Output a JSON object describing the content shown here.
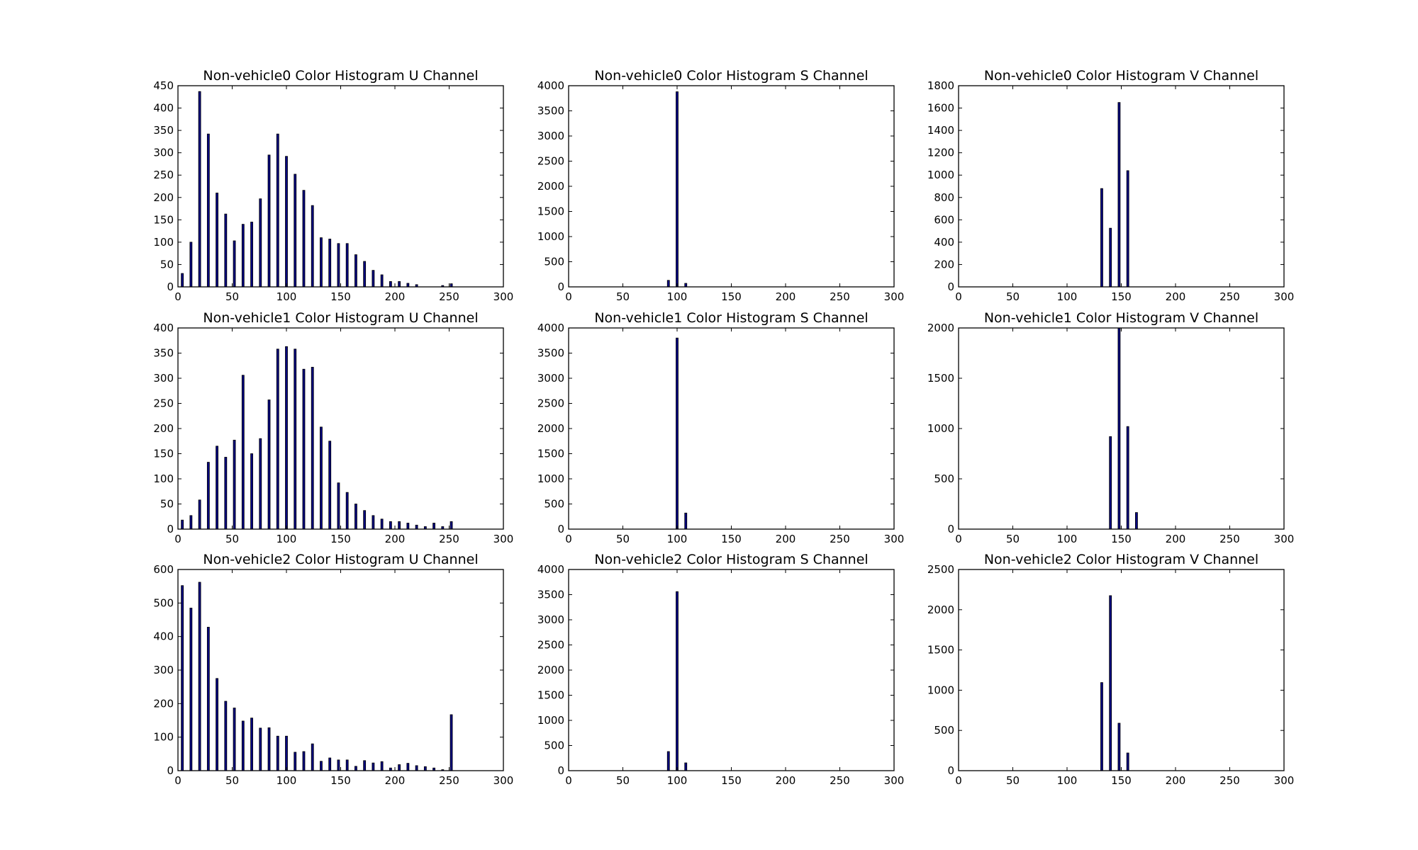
{
  "chart_data": [
    {
      "type": "bar",
      "title": "Non-vehicle0 Color Histogram U Channel",
      "xlim": [
        0,
        300
      ],
      "ylim": [
        0,
        450
      ],
      "xticks": [
        0,
        50,
        100,
        150,
        200,
        250,
        300
      ],
      "yticks": [
        0,
        50,
        100,
        150,
        200,
        250,
        300,
        350,
        400,
        450
      ],
      "x": [
        4,
        12,
        20,
        28,
        36,
        44,
        52,
        60,
        68,
        76,
        84,
        92,
        100,
        108,
        116,
        124,
        132,
        140,
        148,
        156,
        164,
        172,
        180,
        188,
        196,
        204,
        212,
        220,
        244,
        252
      ],
      "values": [
        30,
        100,
        437,
        342,
        210,
        163,
        103,
        140,
        145,
        197,
        295,
        342,
        292,
        252,
        216,
        182,
        110,
        107,
        97,
        97,
        72,
        57,
        37,
        27,
        12,
        12,
        8,
        5,
        3,
        7
      ]
    },
    {
      "type": "bar",
      "title": "Non-vehicle0 Color Histogram S Channel",
      "xlim": [
        0,
        300
      ],
      "ylim": [
        0,
        4000
      ],
      "xticks": [
        0,
        50,
        100,
        150,
        200,
        250,
        300
      ],
      "yticks": [
        0,
        500,
        1000,
        1500,
        2000,
        2500,
        3000,
        3500,
        4000
      ],
      "x": [
        92,
        100,
        108
      ],
      "values": [
        130,
        3880,
        70
      ]
    },
    {
      "type": "bar",
      "title": "Non-vehicle0 Color Histogram V Channel",
      "xlim": [
        0,
        300
      ],
      "ylim": [
        0,
        1800
      ],
      "xticks": [
        0,
        50,
        100,
        150,
        200,
        250,
        300
      ],
      "yticks": [
        0,
        200,
        400,
        600,
        800,
        1000,
        1200,
        1400,
        1600,
        1800
      ],
      "x": [
        132,
        140,
        148,
        156
      ],
      "values": [
        880,
        525,
        1650,
        1040
      ]
    },
    {
      "type": "bar",
      "title": "Non-vehicle1 Color Histogram U Channel",
      "xlim": [
        0,
        300
      ],
      "ylim": [
        0,
        400
      ],
      "xticks": [
        0,
        50,
        100,
        150,
        200,
        250,
        300
      ],
      "yticks": [
        0,
        50,
        100,
        150,
        200,
        250,
        300,
        350,
        400
      ],
      "x": [
        4,
        12,
        20,
        28,
        36,
        44,
        52,
        60,
        68,
        76,
        84,
        92,
        100,
        108,
        116,
        124,
        132,
        140,
        148,
        156,
        164,
        172,
        180,
        188,
        196,
        204,
        212,
        220,
        228,
        236,
        244,
        252
      ],
      "values": [
        18,
        27,
        58,
        133,
        165,
        143,
        177,
        306,
        150,
        180,
        257,
        358,
        363,
        358,
        318,
        322,
        203,
        175,
        92,
        73,
        50,
        37,
        27,
        20,
        15,
        15,
        12,
        8,
        5,
        12,
        5,
        15
      ]
    },
    {
      "type": "bar",
      "title": "Non-vehicle1 Color Histogram S Channel",
      "xlim": [
        0,
        300
      ],
      "ylim": [
        0,
        4000
      ],
      "xticks": [
        0,
        50,
        100,
        150,
        200,
        250,
        300
      ],
      "yticks": [
        0,
        500,
        1000,
        1500,
        2000,
        2500,
        3000,
        3500,
        4000
      ],
      "x": [
        100,
        108
      ],
      "values": [
        3800,
        320
      ]
    },
    {
      "type": "bar",
      "title": "Non-vehicle1 Color Histogram V Channel",
      "xlim": [
        0,
        300
      ],
      "ylim": [
        0,
        2000
      ],
      "xticks": [
        0,
        50,
        100,
        150,
        200,
        250,
        300
      ],
      "yticks": [
        0,
        500,
        1000,
        1500,
        2000
      ],
      "x": [
        140,
        148,
        156,
        164
      ],
      "values": [
        920,
        2000,
        1020,
        165
      ]
    },
    {
      "type": "bar",
      "title": "Non-vehicle2 Color Histogram U Channel",
      "xlim": [
        0,
        300
      ],
      "ylim": [
        0,
        600
      ],
      "xticks": [
        0,
        50,
        100,
        150,
        200,
        250,
        300
      ],
      "yticks": [
        0,
        100,
        200,
        300,
        400,
        500,
        600
      ],
      "x": [
        4,
        12,
        20,
        28,
        36,
        44,
        52,
        60,
        68,
        76,
        84,
        92,
        100,
        108,
        116,
        124,
        132,
        140,
        148,
        156,
        164,
        172,
        180,
        188,
        196,
        204,
        212,
        220,
        228,
        236,
        244,
        252
      ],
      "values": [
        552,
        485,
        562,
        428,
        275,
        207,
        187,
        148,
        157,
        127,
        128,
        103,
        103,
        55,
        57,
        80,
        28,
        38,
        32,
        32,
        13,
        30,
        23,
        27,
        8,
        18,
        22,
        15,
        12,
        8,
        3,
        167
      ]
    },
    {
      "type": "bar",
      "title": "Non-vehicle2 Color Histogram S Channel",
      "xlim": [
        0,
        300
      ],
      "ylim": [
        0,
        4000
      ],
      "xticks": [
        0,
        50,
        100,
        150,
        200,
        250,
        300
      ],
      "yticks": [
        0,
        500,
        1000,
        1500,
        2000,
        2500,
        3000,
        3500,
        4000
      ],
      "x": [
        92,
        100,
        108
      ],
      "values": [
        380,
        3560,
        155
      ]
    },
    {
      "type": "bar",
      "title": "Non-vehicle2 Color Histogram V Channel",
      "xlim": [
        0,
        300
      ],
      "ylim": [
        0,
        2500
      ],
      "xticks": [
        0,
        50,
        100,
        150,
        200,
        250,
        300
      ],
      "yticks": [
        0,
        500,
        1000,
        1500,
        2000,
        2500
      ],
      "x": [
        132,
        140,
        148,
        156
      ],
      "values": [
        1095,
        2175,
        590,
        220
      ]
    }
  ],
  "colors": {
    "bar_fill": "#000080",
    "bar_edge": "#000000",
    "frame": "#000000"
  }
}
